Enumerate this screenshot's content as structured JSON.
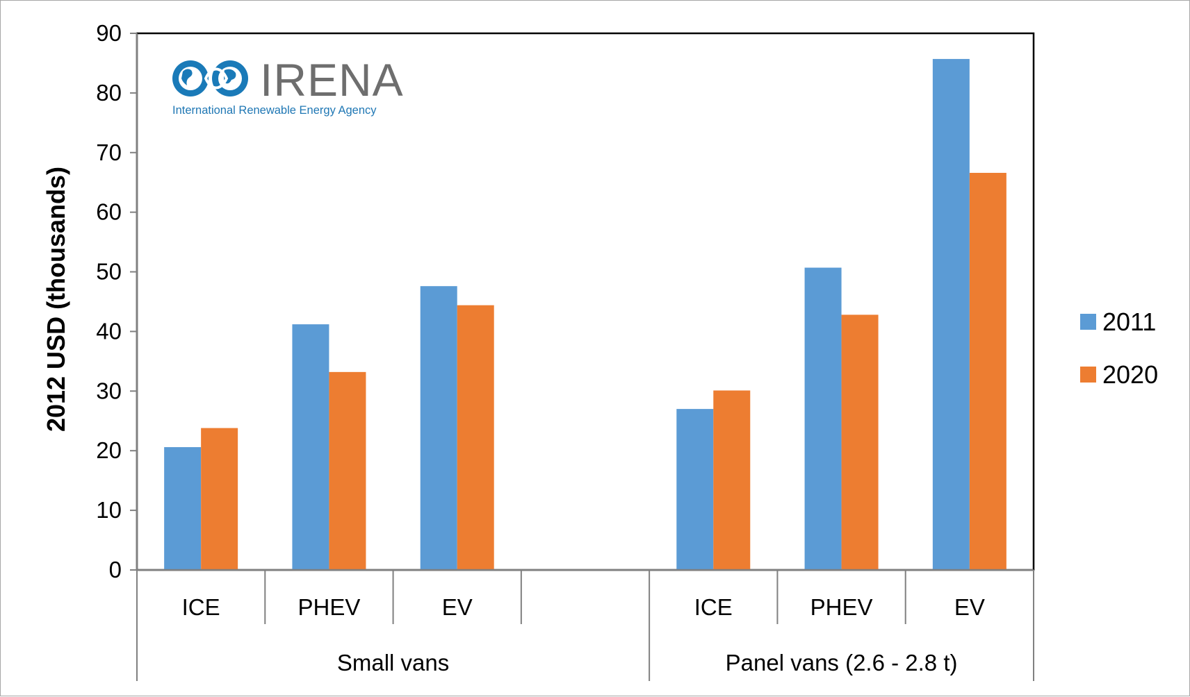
{
  "logo": {
    "wordmark": "IRENA",
    "tagline": "International Renewable Energy Agency",
    "color": "#1a7ab8"
  },
  "chart_data": {
    "type": "bar",
    "title": "",
    "xlabel": "",
    "ylabel": "2012 USD (thousands)",
    "ylim": [
      0,
      90
    ],
    "yticks": [
      0,
      10,
      20,
      30,
      40,
      50,
      60,
      70,
      80,
      90
    ],
    "groups": [
      {
        "label": "Small vans",
        "categories": [
          "ICE",
          "PHEV",
          "EV"
        ]
      },
      {
        "label": "Panel vans (2.6 - 2.8 t)",
        "categories": [
          "ICE",
          "PHEV",
          "EV"
        ]
      }
    ],
    "series": [
      {
        "name": "2011",
        "color": "#5b9bd5",
        "values": [
          20.6,
          41.2,
          47.6,
          27.0,
          50.7,
          85.7
        ]
      },
      {
        "name": "2020",
        "color": "#ed7d31",
        "values": [
          23.8,
          33.2,
          44.4,
          30.1,
          42.8,
          66.6
        ]
      }
    ],
    "legend_position": "right",
    "grid": false
  }
}
